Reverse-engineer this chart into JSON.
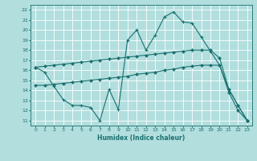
{
  "xlabel": "Humidex (Indice chaleur)",
  "ylabel": "",
  "xlim": [
    -0.5,
    23.5
  ],
  "ylim": [
    10.5,
    22.5
  ],
  "yticks": [
    11,
    12,
    13,
    14,
    15,
    16,
    17,
    18,
    19,
    20,
    21,
    22
  ],
  "xticks": [
    0,
    1,
    2,
    3,
    4,
    5,
    6,
    7,
    8,
    9,
    10,
    11,
    12,
    13,
    14,
    15,
    16,
    17,
    18,
    19,
    20,
    21,
    22,
    23
  ],
  "background_color": "#b2dede",
  "grid_color": "#ffffff",
  "line_color": "#1a7070",
  "line1_x": [
    0,
    1,
    2,
    3,
    4,
    5,
    6,
    7,
    8,
    9,
    10,
    11,
    12,
    13,
    14,
    15,
    16,
    17,
    18,
    19,
    20,
    21,
    22,
    23
  ],
  "line1_y": [
    16.3,
    15.8,
    14.4,
    13.1,
    12.5,
    12.5,
    12.3,
    11.0,
    14.1,
    12.1,
    19.0,
    20.0,
    18.0,
    19.5,
    21.3,
    21.8,
    20.8,
    20.7,
    19.3,
    17.9,
    16.5,
    14.1,
    12.5,
    11.0
  ],
  "line2_x": [
    0,
    1,
    2,
    3,
    4,
    5,
    6,
    7,
    8,
    9,
    10,
    11,
    12,
    13,
    14,
    15,
    16,
    17,
    18,
    19,
    20,
    21,
    22,
    23
  ],
  "line2_y": [
    16.3,
    16.4,
    16.5,
    16.6,
    16.7,
    16.8,
    16.9,
    17.0,
    17.1,
    17.2,
    17.3,
    17.4,
    17.5,
    17.6,
    17.7,
    17.8,
    17.9,
    18.0,
    18.0,
    18.0,
    17.2,
    14.1,
    12.5,
    11.0
  ],
  "line3_x": [
    0,
    1,
    2,
    3,
    4,
    5,
    6,
    7,
    8,
    9,
    10,
    11,
    12,
    13,
    14,
    15,
    16,
    17,
    18,
    19,
    20,
    21,
    22,
    23
  ],
  "line3_y": [
    14.5,
    14.5,
    14.6,
    14.7,
    14.8,
    14.9,
    15.0,
    15.1,
    15.2,
    15.3,
    15.4,
    15.6,
    15.7,
    15.8,
    16.0,
    16.1,
    16.3,
    16.4,
    16.5,
    16.5,
    16.5,
    13.8,
    12.0,
    11.0
  ]
}
